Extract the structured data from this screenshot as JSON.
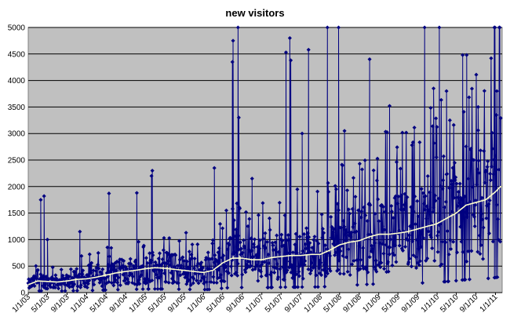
{
  "chart_data": {
    "type": "line",
    "title": "new visitors",
    "xlabel": "",
    "ylabel": "",
    "ylim": [
      0,
      5000
    ],
    "y_ticks": [
      0,
      500,
      1000,
      1500,
      2000,
      2500,
      3000,
      3500,
      4000,
      4500,
      5000
    ],
    "x_ticks": [
      "1/1/03",
      "5/1/03",
      "9/1/03",
      "1/1/04",
      "5/1/04",
      "9/1/04",
      "1/1/05",
      "5/1/05",
      "9/1/05",
      "1/1/06",
      "5/1/06",
      "9/1/06",
      "1/1/07",
      "5/1/07",
      "9/1/07",
      "1/1/08",
      "5/1/08",
      "9/1/08",
      "1/1/09",
      "5/1/09",
      "9/1/09",
      "1/1/10",
      "5/1/10",
      "9/1/10",
      "1/1/11"
    ],
    "grid": true,
    "legend": "none",
    "colors": {
      "plot_bg": "#c0c0c0",
      "series": "#000080",
      "trend": "#ffffcc"
    },
    "series": [
      {
        "values_approx_monthly_midpoints": [
          [
            "1/1/03",
            150
          ],
          [
            "3/1/03",
            220
          ],
          [
            "5/1/03",
            210
          ],
          [
            "7/1/03",
            200
          ],
          [
            "9/1/03",
            220
          ],
          [
            "11/1/03",
            250
          ],
          [
            "1/1/04",
            260
          ],
          [
            "3/1/04",
            290
          ],
          [
            "5/1/04",
            330
          ],
          [
            "7/1/04",
            370
          ],
          [
            "9/1/04",
            400
          ],
          [
            "11/1/04",
            420
          ],
          [
            "1/1/05",
            450
          ],
          [
            "3/1/05",
            470
          ],
          [
            "5/1/05",
            460
          ],
          [
            "7/1/05",
            440
          ],
          [
            "9/1/05",
            420
          ],
          [
            "11/1/05",
            400
          ],
          [
            "1/1/06",
            380
          ],
          [
            "3/1/06",
            420
          ],
          [
            "5/1/06",
            560
          ],
          [
            "7/1/06",
            650
          ],
          [
            "9/1/06",
            650
          ],
          [
            "11/1/06",
            620
          ],
          [
            "1/1/07",
            620
          ],
          [
            "3/1/07",
            660
          ],
          [
            "5/1/07",
            680
          ],
          [
            "7/1/07",
            700
          ],
          [
            "9/1/07",
            700
          ],
          [
            "11/1/07",
            720
          ],
          [
            "1/1/08",
            720
          ],
          [
            "3/1/08",
            800
          ],
          [
            "5/1/08",
            900
          ],
          [
            "7/1/08",
            950
          ],
          [
            "9/1/08",
            980
          ],
          [
            "11/1/08",
            1050
          ],
          [
            "1/1/09",
            1100
          ],
          [
            "3/1/09",
            1100
          ],
          [
            "5/1/09",
            1120
          ],
          [
            "7/1/09",
            1150
          ],
          [
            "9/1/09",
            1200
          ],
          [
            "11/1/09",
            1250
          ],
          [
            "1/1/10",
            1300
          ],
          [
            "3/1/10",
            1400
          ],
          [
            "5/1/10",
            1500
          ],
          [
            "7/1/10",
            1650
          ],
          [
            "9/1/10",
            1700
          ],
          [
            "11/1/10",
            1750
          ],
          [
            "1/1/11",
            1900
          ],
          [
            "2/1/11",
            2000
          ]
        ],
        "spikes": [
          [
            "3/20/03",
            1750
          ],
          [
            "4/10/03",
            1820
          ],
          [
            "5/1/03",
            1000
          ],
          [
            "11/20/03",
            1150
          ],
          [
            "5/20/04",
            1870
          ],
          [
            "11/10/04",
            1880
          ],
          [
            "2/15/05",
            2300
          ],
          [
            "2/10/05",
            2200
          ],
          [
            "3/10/06",
            2350
          ],
          [
            "7/5/06",
            4750
          ],
          [
            "7/1/06",
            4350
          ],
          [
            "8/5/06",
            5000
          ],
          [
            "8/10/06",
            3300
          ],
          [
            "11/1/06",
            2150
          ],
          [
            "6/1/07",
            4530
          ],
          [
            "6/25/07",
            4800
          ],
          [
            "7/1/07",
            4380
          ],
          [
            "10/20/07",
            4580
          ],
          [
            "9/10/07",
            3000
          ],
          [
            "2/15/08",
            5000
          ],
          [
            "4/25/08",
            5000
          ],
          [
            "6/1/08",
            3050
          ],
          [
            "11/5/08",
            4400
          ],
          [
            "3/10/09",
            3520
          ],
          [
            "10/15/09",
            5000
          ],
          [
            "12/10/09",
            3850
          ],
          [
            "1/15/10",
            5000
          ],
          [
            "3/1/10",
            3800
          ],
          [
            "6/10/10",
            4480
          ],
          [
            "7/5/10",
            4480
          ],
          [
            "9/15/10",
            3500
          ],
          [
            "12/25/10",
            5000
          ],
          [
            "1/10/11",
            3800
          ]
        ],
        "end_values": [
          [
            "1/15/11",
            2500
          ],
          [
            "2/1/11",
            2000
          ]
        ]
      }
    ]
  }
}
